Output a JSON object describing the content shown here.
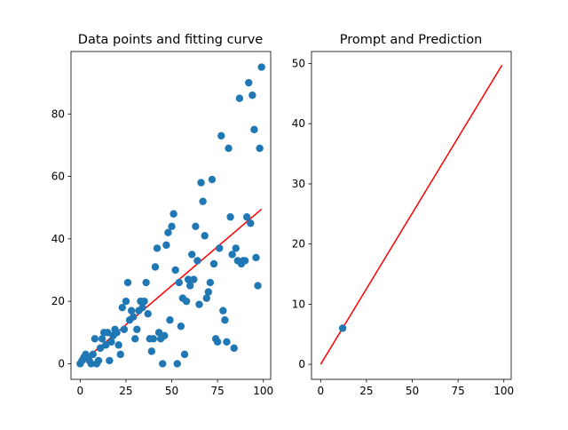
{
  "chart_data": [
    {
      "type": "scatter",
      "title": "Data points and fitting curve",
      "xlim": [
        -5,
        104
      ],
      "ylim": [
        -5,
        100
      ],
      "xticks": [
        0,
        25,
        50,
        75,
        100
      ],
      "yticks": [
        0,
        20,
        40,
        60,
        80
      ],
      "series": [
        {
          "kind": "scatter",
          "color": "#1f77b4",
          "points": [
            [
              0,
              0
            ],
            [
              1,
              1
            ],
            [
              2,
              2
            ],
            [
              3,
              3
            ],
            [
              4,
              2
            ],
            [
              5,
              1
            ],
            [
              6,
              0
            ],
            [
              7,
              3
            ],
            [
              8,
              8
            ],
            [
              9,
              0
            ],
            [
              10,
              1
            ],
            [
              11,
              5
            ],
            [
              12,
              8
            ],
            [
              13,
              10
            ],
            [
              14,
              6
            ],
            [
              15,
              10
            ],
            [
              16,
              1
            ],
            [
              17,
              7
            ],
            [
              18,
              9
            ],
            [
              19,
              11
            ],
            [
              20,
              10
            ],
            [
              21,
              6
            ],
            [
              22,
              3
            ],
            [
              23,
              18
            ],
            [
              24,
              11
            ],
            [
              25,
              20
            ],
            [
              26,
              26
            ],
            [
              27,
              14
            ],
            [
              28,
              17
            ],
            [
              29,
              15
            ],
            [
              30,
              8
            ],
            [
              31,
              11
            ],
            [
              32,
              17
            ],
            [
              33,
              20
            ],
            [
              34,
              18
            ],
            [
              35,
              20
            ],
            [
              36,
              26
            ],
            [
              37,
              16
            ],
            [
              38,
              8
            ],
            [
              39,
              4
            ],
            [
              40,
              8
            ],
            [
              41,
              31
            ],
            [
              42,
              37
            ],
            [
              43,
              10
            ],
            [
              44,
              8
            ],
            [
              45,
              0
            ],
            [
              46,
              9
            ],
            [
              47,
              38
            ],
            [
              48,
              42
            ],
            [
              49,
              14
            ],
            [
              50,
              44
            ],
            [
              51,
              48
            ],
            [
              52,
              30
            ],
            [
              53,
              0
            ],
            [
              54,
              26
            ],
            [
              55,
              12
            ],
            [
              56,
              21
            ],
            [
              57,
              3
            ],
            [
              58,
              20
            ],
            [
              59,
              27
            ],
            [
              60,
              25
            ],
            [
              61,
              35
            ],
            [
              62,
              27
            ],
            [
              63,
              44
            ],
            [
              64,
              33
            ],
            [
              65,
              19
            ],
            [
              66,
              58
            ],
            [
              67,
              52
            ],
            [
              68,
              41
            ],
            [
              69,
              21
            ],
            [
              70,
              23
            ],
            [
              71,
              26
            ],
            [
              72,
              59
            ],
            [
              73,
              32
            ],
            [
              74,
              8
            ],
            [
              75,
              7
            ],
            [
              76,
              37
            ],
            [
              77,
              73
            ],
            [
              78,
              17
            ],
            [
              79,
              14
            ],
            [
              80,
              7
            ],
            [
              81,
              69
            ],
            [
              82,
              47
            ],
            [
              83,
              35
            ],
            [
              84,
              5
            ],
            [
              85,
              37
            ],
            [
              86,
              33
            ],
            [
              87,
              85
            ],
            [
              88,
              32
            ],
            [
              89,
              33
            ],
            [
              90,
              33
            ],
            [
              91,
              47
            ],
            [
              92,
              90
            ],
            [
              93,
              45
            ],
            [
              94,
              86
            ],
            [
              95,
              75
            ],
            [
              96,
              34
            ],
            [
              97,
              25
            ],
            [
              98,
              69
            ],
            [
              99,
              95
            ]
          ]
        },
        {
          "kind": "line",
          "color": "#ff0000",
          "x": [
            0,
            99
          ],
          "y": [
            0,
            49.5
          ]
        }
      ]
    },
    {
      "type": "scatter",
      "title": "Prompt and Prediction",
      "xlim": [
        -5,
        104
      ],
      "ylim": [
        -2.5,
        52
      ],
      "xticks": [
        0,
        25,
        50,
        75,
        100
      ],
      "yticks": [
        0,
        10,
        20,
        30,
        40,
        50
      ],
      "series": [
        {
          "kind": "scatter",
          "color": "#1f77b4",
          "points": [
            [
              12,
              6
            ]
          ]
        },
        {
          "kind": "line",
          "color": "#ff0000",
          "x": [
            0,
            99
          ],
          "y": [
            0,
            49.75
          ]
        }
      ]
    }
  ]
}
